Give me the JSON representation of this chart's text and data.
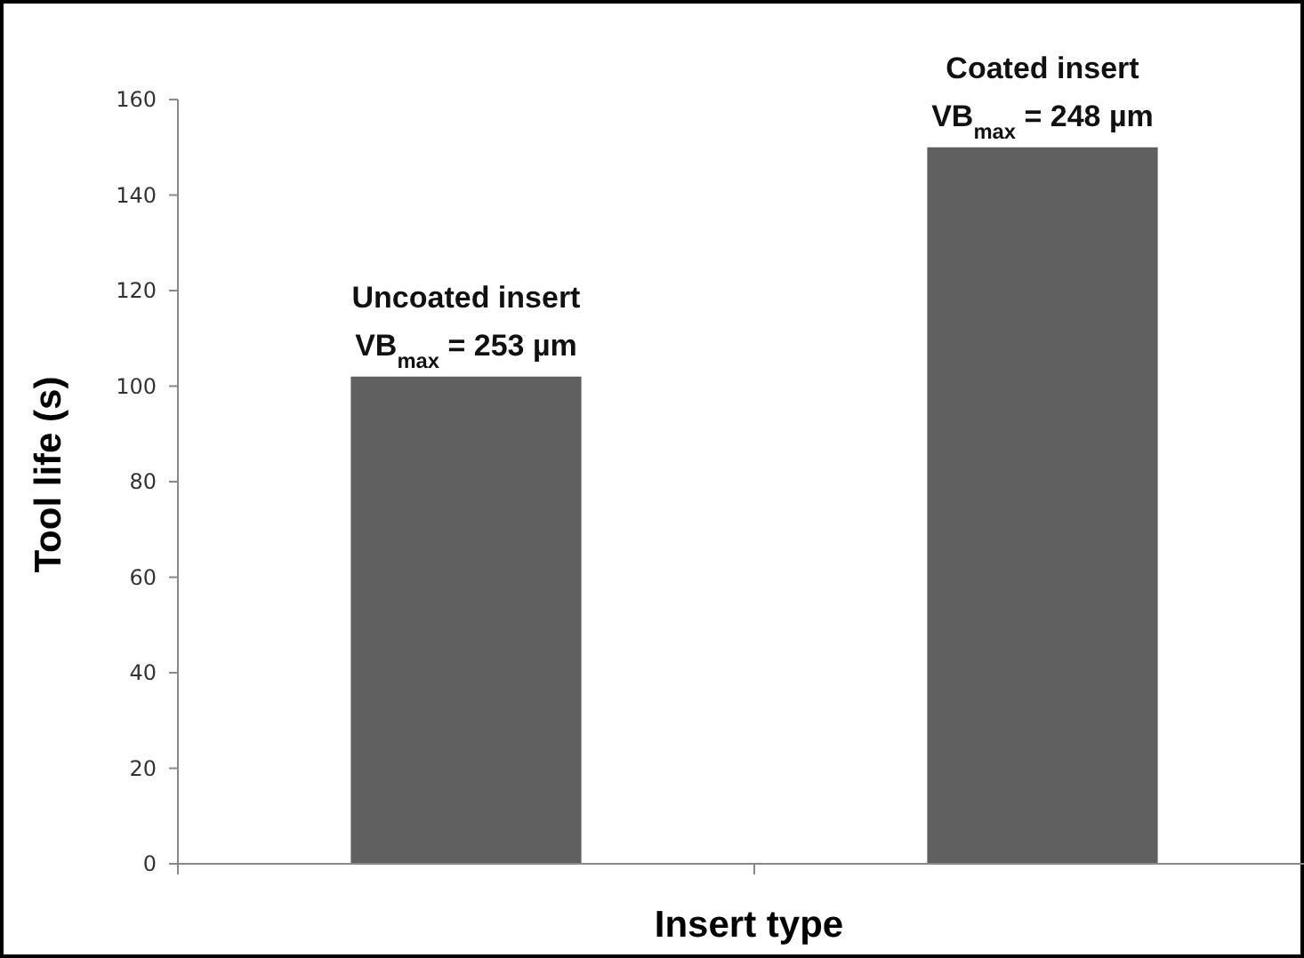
{
  "chart_data": {
    "type": "bar",
    "xlabel": "Insert type",
    "ylabel": "Tool life (s)",
    "categories": [
      null,
      null
    ],
    "values": [
      102,
      150
    ],
    "color": "#606060",
    "ylim": [
      0,
      160
    ],
    "yticks": [
      0,
      20,
      40,
      60,
      80,
      100,
      120,
      140,
      160
    ],
    "grid": false,
    "annotations": [
      "Uncoated insert\nVB$_{max}$ = 253 µm",
      "Coated insert\nVB$_{max}$ = 248 µm"
    ]
  }
}
